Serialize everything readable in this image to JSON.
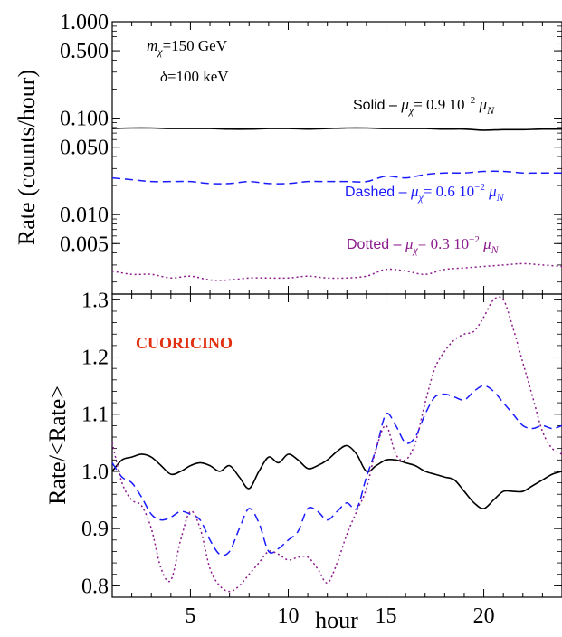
{
  "chart_data": [
    {
      "panel": "top",
      "type": "line",
      "y_scale": "log",
      "ylabel": "Rate (counts/hour)",
      "ylim": [
        0.0015,
        1.0
      ],
      "xlim": [
        1,
        24
      ],
      "yticks": [
        {
          "value": 1.0,
          "label": "1.000"
        },
        {
          "value": 0.5,
          "label": "0.500"
        },
        {
          "value": 0.1,
          "label": "0.100"
        },
        {
          "value": 0.05,
          "label": "0.050"
        },
        {
          "value": 0.01,
          "label": "0.010"
        },
        {
          "value": 0.005,
          "label": "0.005"
        }
      ],
      "annotations": {
        "mass": "mχ=150 GeV",
        "delta": "δ=100 keV",
        "solid": "Solid – μχ= 0.9 10⁻² μN",
        "dashed": "Dashed – μχ= 0.6 10⁻² μN",
        "dotted": "Dotted – μχ= 0.3 10⁻² μN"
      },
      "series": [
        {
          "style": "solid",
          "color": "#000000",
          "x": [
            1,
            2,
            3,
            4,
            5,
            6,
            7,
            8,
            9,
            10,
            11,
            12,
            13,
            14,
            15,
            16,
            17,
            18,
            19,
            20,
            21,
            22,
            23,
            24
          ],
          "values": [
            0.078,
            0.079,
            0.079,
            0.078,
            0.078,
            0.078,
            0.077,
            0.077,
            0.078,
            0.078,
            0.077,
            0.078,
            0.079,
            0.079,
            0.078,
            0.078,
            0.078,
            0.077,
            0.077,
            0.075,
            0.076,
            0.076,
            0.077,
            0.077
          ]
        },
        {
          "style": "dashed",
          "color": "#1a1aff",
          "x": [
            1,
            2,
            3,
            4,
            5,
            6,
            7,
            8,
            9,
            10,
            11,
            12,
            13,
            14,
            15,
            16,
            17,
            18,
            19,
            20,
            21,
            22,
            23,
            24
          ],
          "values": [
            0.024,
            0.023,
            0.022,
            0.022,
            0.022,
            0.021,
            0.021,
            0.022,
            0.021,
            0.021,
            0.022,
            0.022,
            0.022,
            0.022,
            0.025,
            0.024,
            0.026,
            0.027,
            0.027,
            0.028,
            0.028,
            0.027,
            0.027,
            0.027
          ]
        },
        {
          "style": "dotted",
          "color": "#8b1a8b",
          "x": [
            1,
            2,
            3,
            4,
            5,
            6,
            7,
            8,
            9,
            10,
            11,
            12,
            13,
            14,
            15,
            16,
            17,
            18,
            19,
            20,
            21,
            22,
            23,
            24
          ],
          "values": [
            0.0026,
            0.0024,
            0.0024,
            0.0022,
            0.0023,
            0.0021,
            0.0021,
            0.0022,
            0.0022,
            0.0022,
            0.0023,
            0.0022,
            0.0022,
            0.0023,
            0.0027,
            0.0026,
            0.0024,
            0.0027,
            0.0028,
            0.0029,
            0.003,
            0.0031,
            0.003,
            0.0029
          ]
        }
      ]
    },
    {
      "panel": "bottom",
      "type": "line",
      "ylabel": "Rate/<Rate>",
      "xlabel": "hour",
      "ylim": [
        0.78,
        1.31
      ],
      "xlim": [
        1,
        24
      ],
      "yticks": [
        {
          "value": 0.8,
          "label": "0.8"
        },
        {
          "value": 0.9,
          "label": "0.9"
        },
        {
          "value": 1.0,
          "label": "1.0"
        },
        {
          "value": 1.1,
          "label": "1.1"
        },
        {
          "value": 1.2,
          "label": "1.2"
        },
        {
          "value": 1.3,
          "label": "1.3"
        }
      ],
      "xticks": [
        {
          "value": 5,
          "label": "5"
        },
        {
          "value": 10,
          "label": "10"
        },
        {
          "value": 15,
          "label": "15"
        },
        {
          "value": 20,
          "label": "20"
        }
      ],
      "label": "CUORICINO",
      "label_color": "#e03010",
      "series": [
        {
          "style": "solid",
          "color": "#000000",
          "x": [
            1,
            1.5,
            2,
            2.5,
            3,
            3.5,
            4,
            4.5,
            5,
            5.5,
            6,
            6.5,
            7,
            7.5,
            8,
            8.5,
            9,
            9.5,
            10,
            10.5,
            11,
            11.5,
            12,
            12.5,
            13,
            13.5,
            14,
            14.5,
            15,
            15.5,
            16,
            16.5,
            17,
            17.5,
            18,
            18.5,
            19,
            19.5,
            20,
            20.5,
            21,
            21.5,
            22,
            22.5,
            23,
            23.5,
            24
          ],
          "values": [
            1.0,
            1.02,
            1.025,
            1.03,
            1.025,
            1.01,
            0.995,
            1.0,
            1.01,
            1.015,
            1.01,
            1.0,
            1.01,
            0.99,
            0.97,
            1.0,
            1.025,
            1.015,
            1.03,
            1.02,
            1.005,
            1.01,
            1.02,
            1.035,
            1.045,
            1.03,
            1.0,
            1.01,
            1.02,
            1.02,
            1.015,
            1.01,
            1.0,
            0.995,
            0.99,
            0.985,
            0.965,
            0.945,
            0.935,
            0.95,
            0.965,
            0.965,
            0.965,
            0.975,
            0.985,
            0.995,
            1.0
          ]
        },
        {
          "style": "dashed",
          "color": "#1a1aff",
          "x": [
            1,
            1.5,
            2,
            2.5,
            3,
            3.5,
            4,
            4.5,
            5,
            5.5,
            6,
            6.5,
            7,
            7.5,
            8,
            8.5,
            9,
            9.5,
            10,
            10.5,
            11,
            11.5,
            12,
            12.5,
            13,
            13.5,
            14,
            14.5,
            15,
            15.5,
            16,
            16.5,
            17,
            17.5,
            18,
            18.5,
            19,
            19.5,
            20,
            20.5,
            21,
            21.5,
            22,
            22.5,
            23,
            23.5,
            24
          ],
          "values": [
            1.015,
            0.99,
            0.98,
            0.955,
            0.925,
            0.915,
            0.92,
            0.93,
            0.925,
            0.915,
            0.88,
            0.855,
            0.86,
            0.9,
            0.935,
            0.91,
            0.86,
            0.865,
            0.88,
            0.895,
            0.935,
            0.93,
            0.915,
            0.93,
            0.945,
            0.935,
            0.99,
            1.04,
            1.1,
            1.08,
            1.05,
            1.06,
            1.1,
            1.13,
            1.135,
            1.13,
            1.125,
            1.14,
            1.15,
            1.14,
            1.12,
            1.1,
            1.08,
            1.075,
            1.08,
            1.075,
            1.08
          ]
        },
        {
          "style": "dotted",
          "color": "#8b1a8b",
          "x": [
            1,
            1.5,
            2,
            2.5,
            3,
            3.5,
            4,
            4.5,
            5,
            5.5,
            6,
            6.5,
            7,
            7.5,
            8,
            8.5,
            9,
            9.5,
            10,
            10.5,
            11,
            11.5,
            12,
            12.5,
            13,
            13.5,
            14,
            14.5,
            15,
            15.5,
            16,
            16.5,
            17,
            17.5,
            18,
            18.5,
            19,
            19.5,
            20,
            20.5,
            21,
            21.5,
            22,
            22.5,
            23,
            23.5,
            24
          ],
          "values": [
            1.05,
            0.98,
            0.95,
            0.94,
            0.9,
            0.83,
            0.81,
            0.88,
            0.93,
            0.9,
            0.83,
            0.8,
            0.79,
            0.8,
            0.82,
            0.84,
            0.86,
            0.855,
            0.845,
            0.85,
            0.85,
            0.83,
            0.805,
            0.84,
            0.89,
            0.93,
            0.97,
            1.04,
            1.08,
            1.03,
            1.02,
            1.05,
            1.12,
            1.18,
            1.21,
            1.23,
            1.24,
            1.245,
            1.27,
            1.3,
            1.3,
            1.25,
            1.19,
            1.13,
            1.07,
            1.04,
            1.03
          ]
        }
      ]
    }
  ]
}
